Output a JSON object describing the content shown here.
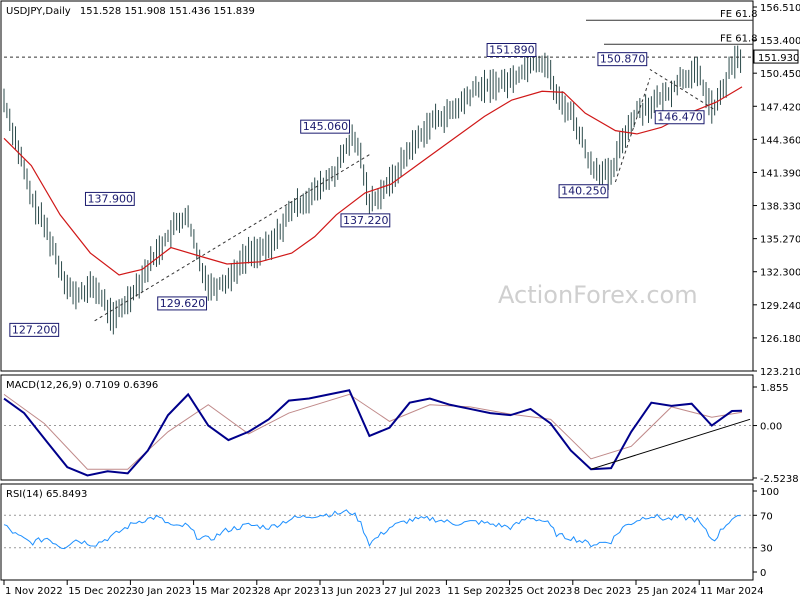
{
  "header": {
    "title": "USDJPY,Daily",
    "ohlc": "151.528 151.908 151.436 151.839"
  },
  "watermark": "ActionForex.com",
  "price_panel": {
    "y_ticks": [
      "156.510",
      "153.400",
      "150.450",
      "147.420",
      "144.360",
      "141.390",
      "138.330",
      "135.270",
      "132.300",
      "129.240",
      "126.180",
      "123.210"
    ],
    "current_price": "151.930",
    "fe_labels": [
      "FE 61.8",
      "FE 61.8"
    ],
    "swing_labels": [
      "151.890",
      "150.870",
      "145.060",
      "137.900",
      "137.220",
      "140.250",
      "146.470",
      "129.620",
      "127.200"
    ]
  },
  "macd_panel": {
    "title": "MACD(12,26,9) 0.7109 0.6396",
    "y_ticks": [
      "1.855",
      "0.00",
      "-2.5238"
    ]
  },
  "rsi_panel": {
    "title": "RSI(14) 65.8493",
    "y_ticks": [
      "100",
      "70",
      "30",
      "0"
    ]
  },
  "x_axis": {
    "labels": [
      "1 Nov 2022",
      "15 Dec 2022",
      "30 Jan 2023",
      "15 Mar 2023",
      "28 Apr 2023",
      "13 Jun 2023",
      "27 Jul 2023",
      "11 Sep 2023",
      "25 Oct 2023",
      "8 Dec 2023",
      "25 Jan 2024",
      "11 Mar 2024"
    ]
  },
  "colors": {
    "candles": "#2b4a4a",
    "sma": "#d01818",
    "macd": "#00008b",
    "signal": "#c08a8a",
    "rsi": "#1e90ff",
    "label_box": "#1a1a6e"
  },
  "chart_data": {
    "type": "line",
    "title": "USDJPY,Daily",
    "y_range": [
      123.21,
      156.51
    ],
    "current_price": 151.93,
    "fibonacci_extensions": [
      {
        "label": "FE 61.8",
        "value": 155.3
      },
      {
        "label": "FE 61.8",
        "value": 153.1
      }
    ],
    "swing_points": [
      {
        "date": "2022-11-24",
        "value": 137.9
      },
      {
        "date": "2022-12-14",
        "value": 127.2
      },
      {
        "date": "2023-01-30",
        "value": 137.9
      },
      {
        "date": "2023-03-24",
        "value": 129.62
      },
      {
        "date": "2023-06-30",
        "value": 145.06
      },
      {
        "date": "2023-07-28",
        "value": 137.22
      },
      {
        "date": "2023-11-01",
        "value": 151.89
      },
      {
        "date": "2023-12-28",
        "value": 140.25
      },
      {
        "date": "2024-01-24",
        "value": 150.87
      },
      {
        "date": "2024-03-08",
        "value": 146.47
      }
    ],
    "series": [
      {
        "name": "Price",
        "points": [
          [
            "2022-11-01",
            148.0
          ],
          [
            "2022-11-10",
            144.0
          ],
          [
            "2022-11-20",
            139.0
          ],
          [
            "2022-12-01",
            136.0
          ],
          [
            "2022-12-12",
            132.0
          ],
          [
            "2022-12-20",
            130.0
          ],
          [
            "2023-01-03",
            131.0
          ],
          [
            "2023-01-16",
            128.0
          ],
          [
            "2023-01-25",
            129.5
          ],
          [
            "2023-02-01",
            131.0
          ],
          [
            "2023-02-15",
            134.0
          ],
          [
            "2023-02-28",
            136.5
          ],
          [
            "2023-03-08",
            137.5
          ],
          [
            "2023-03-15",
            134.0
          ],
          [
            "2023-03-24",
            130.8
          ],
          [
            "2023-04-05",
            131.5
          ],
          [
            "2023-04-20",
            134.0
          ],
          [
            "2023-05-05",
            134.5
          ],
          [
            "2023-05-20",
            138.0
          ],
          [
            "2023-06-05",
            139.5
          ],
          [
            "2023-06-20",
            141.5
          ],
          [
            "2023-06-30",
            144.5
          ],
          [
            "2023-07-06",
            143.5
          ],
          [
            "2023-07-13",
            138.5
          ],
          [
            "2023-07-28",
            140.5
          ],
          [
            "2023-08-10",
            143.5
          ],
          [
            "2023-08-25",
            146.0
          ],
          [
            "2023-09-10",
            147.0
          ],
          [
            "2023-09-25",
            149.0
          ],
          [
            "2023-10-10",
            149.5
          ],
          [
            "2023-10-20",
            149.8
          ],
          [
            "2023-11-01",
            151.3
          ],
          [
            "2023-11-13",
            151.5
          ],
          [
            "2023-11-21",
            148.0
          ],
          [
            "2023-12-01",
            146.8
          ],
          [
            "2023-12-14",
            142.0
          ],
          [
            "2023-12-28",
            141.0
          ],
          [
            "2024-01-05",
            144.5
          ],
          [
            "2024-01-15",
            147.0
          ],
          [
            "2024-01-24",
            147.5
          ],
          [
            "2024-02-05",
            148.5
          ],
          [
            "2024-02-15",
            150.0
          ],
          [
            "2024-02-26",
            150.5
          ],
          [
            "2024-03-08",
            147.0
          ],
          [
            "2024-03-15",
            149.0
          ],
          [
            "2024-03-22",
            151.5
          ],
          [
            "2024-03-28",
            151.8
          ]
        ]
      },
      {
        "name": "SMA",
        "points": [
          [
            "2022-11-01",
            144.5
          ],
          [
            "2022-11-20",
            142.0
          ],
          [
            "2022-12-10",
            137.5
          ],
          [
            "2022-12-31",
            134.0
          ],
          [
            "2023-01-20",
            132.0
          ],
          [
            "2023-02-05",
            132.5
          ],
          [
            "2023-02-25",
            134.5
          ],
          [
            "2023-03-15",
            133.8
          ],
          [
            "2023-04-05",
            133.0
          ],
          [
            "2023-04-28",
            133.2
          ],
          [
            "2023-05-20",
            134.0
          ],
          [
            "2023-06-05",
            135.5
          ],
          [
            "2023-06-20",
            137.5
          ],
          [
            "2023-07-10",
            139.5
          ],
          [
            "2023-07-28",
            140.3
          ],
          [
            "2023-08-20",
            142.5
          ],
          [
            "2023-09-10",
            144.5
          ],
          [
            "2023-10-01",
            146.5
          ],
          [
            "2023-10-20",
            148.0
          ],
          [
            "2023-11-10",
            148.8
          ],
          [
            "2023-11-25",
            148.7
          ],
          [
            "2023-12-10",
            146.8
          ],
          [
            "2023-12-31",
            145.2
          ],
          [
            "2024-01-15",
            144.9
          ],
          [
            "2024-02-01",
            145.5
          ],
          [
            "2024-02-20",
            146.8
          ],
          [
            "2024-03-10",
            147.8
          ],
          [
            "2024-03-28",
            149.2
          ]
        ]
      }
    ],
    "macd": {
      "range": [
        -2.5238,
        1.855
      ],
      "points": [
        [
          "2022-11-01",
          1.3
        ],
        [
          "2022-11-15",
          0.6
        ],
        [
          "2022-12-01",
          -0.8
        ],
        [
          "2022-12-15",
          -2.0
        ],
        [
          "2022-12-29",
          -2.4
        ],
        [
          "2023-01-12",
          -2.2
        ],
        [
          "2023-01-26",
          -2.3
        ],
        [
          "2023-02-09",
          -1.2
        ],
        [
          "2023-02-23",
          0.5
        ],
        [
          "2023-03-09",
          1.5
        ],
        [
          "2023-03-23",
          0.0
        ],
        [
          "2023-04-06",
          -0.7
        ],
        [
          "2023-04-20",
          -0.3
        ],
        [
          "2023-05-04",
          0.3
        ],
        [
          "2023-05-18",
          1.2
        ],
        [
          "2023-06-01",
          1.3
        ],
        [
          "2023-06-15",
          1.5
        ],
        [
          "2023-06-29",
          1.7
        ],
        [
          "2023-07-13",
          -0.5
        ],
        [
          "2023-07-27",
          -0.1
        ],
        [
          "2023-08-10",
          1.1
        ],
        [
          "2023-08-24",
          1.3
        ],
        [
          "2023-09-07",
          1.0
        ],
        [
          "2023-09-21",
          0.8
        ],
        [
          "2023-10-05",
          0.6
        ],
        [
          "2023-10-19",
          0.5
        ],
        [
          "2023-11-02",
          0.8
        ],
        [
          "2023-11-16",
          0.1
        ],
        [
          "2023-11-30",
          -1.2
        ],
        [
          "2023-12-14",
          -2.1
        ],
        [
          "2023-12-28",
          -2.05
        ],
        [
          "2024-01-11",
          -0.3
        ],
        [
          "2024-01-25",
          1.1
        ],
        [
          "2024-02-08",
          0.95
        ],
        [
          "2024-02-22",
          1.05
        ],
        [
          "2024-03-07",
          0.0
        ],
        [
          "2024-03-21",
          0.7
        ],
        [
          "2024-03-28",
          0.71
        ]
      ],
      "signal_points": [
        [
          "2022-11-01",
          1.5
        ],
        [
          "2022-11-29",
          0.1
        ],
        [
          "2022-12-29",
          -2.1
        ],
        [
          "2023-01-26",
          -2.1
        ],
        [
          "2023-02-23",
          -0.3
        ],
        [
          "2023-03-23",
          1.0
        ],
        [
          "2023-04-20",
          -0.4
        ],
        [
          "2023-05-18",
          0.6
        ],
        [
          "2023-06-29",
          1.5
        ],
        [
          "2023-07-27",
          0.2
        ],
        [
          "2023-08-24",
          1.0
        ],
        [
          "2023-09-21",
          0.9
        ],
        [
          "2023-10-19",
          0.55
        ],
        [
          "2023-11-16",
          0.3
        ],
        [
          "2023-12-14",
          -1.6
        ],
        [
          "2024-01-11",
          -1.0
        ],
        [
          "2024-02-08",
          0.9
        ],
        [
          "2024-03-07",
          0.4
        ],
        [
          "2024-03-28",
          0.64
        ]
      ],
      "trendline": [
        [
          "2023-12-14",
          -2.1
        ],
        [
          "2024-03-28",
          0.3
        ]
      ]
    },
    "rsi": {
      "range": [
        0,
        100
      ],
      "levels": [
        70,
        30
      ],
      "points": [
        [
          "2022-11-01",
          58
        ],
        [
          "2022-11-10",
          45
        ],
        [
          "2022-11-20",
          36
        ],
        [
          "2022-12-01",
          42
        ],
        [
          "2022-12-12",
          30
        ],
        [
          "2022-12-20",
          40
        ],
        [
          "2023-01-03",
          34
        ],
        [
          "2023-01-16",
          45
        ],
        [
          "2023-01-25",
          55
        ],
        [
          "2023-02-01",
          62
        ],
        [
          "2023-02-15",
          68
        ],
        [
          "2023-02-28",
          55
        ],
        [
          "2023-03-08",
          58
        ],
        [
          "2023-03-15",
          44
        ],
        [
          "2023-03-24",
          40
        ],
        [
          "2023-04-05",
          52
        ],
        [
          "2023-04-20",
          58
        ],
        [
          "2023-05-05",
          55
        ],
        [
          "2023-05-20",
          66
        ],
        [
          "2023-06-05",
          70
        ],
        [
          "2023-06-20",
          72
        ],
        [
          "2023-06-30",
          75
        ],
        [
          "2023-07-06",
          64
        ],
        [
          "2023-07-13",
          35
        ],
        [
          "2023-07-28",
          56
        ],
        [
          "2023-08-10",
          64
        ],
        [
          "2023-08-25",
          66
        ],
        [
          "2023-09-10",
          60
        ],
        [
          "2023-09-25",
          62
        ],
        [
          "2023-10-10",
          58
        ],
        [
          "2023-10-20",
          55
        ],
        [
          "2023-11-01",
          68
        ],
        [
          "2023-11-13",
          62
        ],
        [
          "2023-11-21",
          45
        ],
        [
          "2023-12-01",
          42
        ],
        [
          "2023-12-14",
          34
        ],
        [
          "2023-12-28",
          38
        ],
        [
          "2024-01-05",
          55
        ],
        [
          "2024-01-15",
          64
        ],
        [
          "2024-01-24",
          70
        ],
        [
          "2024-02-05",
          65
        ],
        [
          "2024-02-15",
          68
        ],
        [
          "2024-02-26",
          64
        ],
        [
          "2024-03-08",
          38
        ],
        [
          "2024-03-15",
          55
        ],
        [
          "2024-03-22",
          68
        ],
        [
          "2024-03-28",
          65.8
        ]
      ]
    }
  }
}
